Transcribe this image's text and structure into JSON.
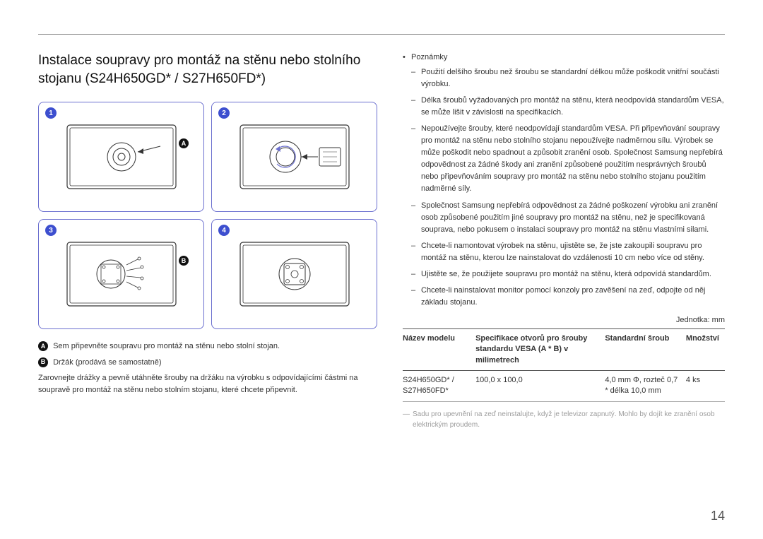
{
  "title": "Instalace soupravy pro montáž na stěnu nebo stolního stojanu (S24H650GD* / S27H650FD*)",
  "diagram": {
    "cells": [
      {
        "num": "1",
        "letter": "A",
        "letter_pos": "right"
      },
      {
        "num": "2"
      },
      {
        "num": "3",
        "letter": "B",
        "letter_pos": "right"
      },
      {
        "num": "4"
      }
    ]
  },
  "legend": {
    "A": "Sem připevněte soupravu pro montáž na stěnu nebo stolní stojan.",
    "B": "Držák (prodává se samostatně)"
  },
  "left_body": "Zarovnejte drážky a pevně utáhněte šrouby na držáku na výrobku s odpovídajícími částmi na soupravě pro montáž na stěnu nebo stolním stojanu, které chcete připevnit.",
  "notes_label": "Poznámky",
  "notes": [
    "Použití delšího šroubu než šroubu se standardní délkou může poškodit vnitřní součásti výrobku.",
    "Délka šroubů vyžadovaných pro montáž na stěnu, která neodpovídá standardům VESA, se může lišit v závislosti na specifikacích.",
    "Nepoužívejte šrouby, které neodpovídají standardům VESA. Při připevňování soupravy pro montáž na stěnu nebo stolního stojanu nepoužívejte nadměrnou sílu. Výrobek se může poškodit nebo spadnout a způsobit zranění osob. Společnost Samsung nepřebírá odpovědnost za žádné škody ani zranění způsobené použitím nesprávných šroubů nebo připevňováním soupravy pro montáž na stěnu nebo stolního stojanu použitím nadměrné síly.",
    "Společnost Samsung nepřebírá odpovědnost za žádné poškození výrobku ani zranění osob způsobené použitím jiné soupravy pro montáž na stěnu, než je specifikovaná souprava, nebo pokusem o instalaci soupravy pro montáž na stěnu vlastními silami.",
    "Chcete-li namontovat výrobek na stěnu, ujistěte se, že jste zakoupili soupravu pro montáž na stěnu, kterou lze nainstalovat do vzdálenosti 10 cm nebo více od stěny.",
    "Ujistěte se, že použijete soupravu pro montáž na stěnu, která odpovídá standardům.",
    "Chcete-li nainstalovat monitor pomocí konzoly pro zavěšení na zeď, odpojte od něj základu stojanu."
  ],
  "unit_label": "Jednotka: mm",
  "table": {
    "headers": [
      "Název modelu",
      "Specifikace otvorů pro šrouby standardu VESA (A * B) v milimetrech",
      "Standardní šroub",
      "Množství"
    ],
    "row": {
      "model": "S24H650GD* / S27H650FD*",
      "vesa": "100,0 x 100,0",
      "screw": "4,0 mm Φ, rozteč 0,7 * délka 10,0 mm",
      "qty": "4 ks"
    }
  },
  "footnote": "Sadu pro upevnění na zeď neinstalujte, když je televizor zapnutý. Mohlo by dojít ke zranění osob elektrickým proudem.",
  "page_number": "14",
  "colors": {
    "badge_blue": "#3d4fcf",
    "border_purple": "#6b6fcf"
  }
}
